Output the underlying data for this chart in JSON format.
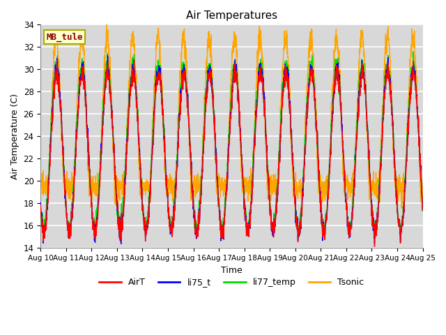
{
  "title": "Air Temperatures",
  "xlabel": "Time",
  "ylabel": "Air Temperature (C)",
  "ylim": [
    14,
    34
  ],
  "yticks": [
    14,
    16,
    18,
    20,
    22,
    24,
    26,
    28,
    30,
    32,
    34
  ],
  "x_labels": [
    "Aug 10",
    "Aug 11",
    "Aug 12",
    "Aug 13",
    "Aug 14",
    "Aug 15",
    "Aug 16",
    "Aug 17",
    "Aug 18",
    "Aug 19",
    "Aug 20",
    "Aug 21",
    "Aug 22",
    "Aug 23",
    "Aug 24",
    "Aug 25"
  ],
  "annotation_text": "MB_tule",
  "annotation_box_color": "#ffffcc",
  "annotation_text_color": "#8b0000",
  "annotation_border_color": "#aaaa00",
  "series_colors": {
    "AirT": "red",
    "li75_t": "blue",
    "li77_temp": "#00dd00",
    "Tsonic": "orange"
  },
  "series_lw": 1.0,
  "background_color": "#d8d8d8",
  "grid_color": "white",
  "n_days": 15,
  "points_per_day": 144
}
